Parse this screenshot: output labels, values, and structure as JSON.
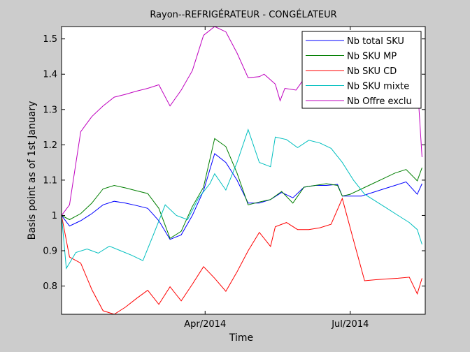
{
  "chart_data": {
    "type": "line",
    "title": "Rayon--REFRIGÉRATEUR - CONGÉLATEUR",
    "xlabel": "Time",
    "ylabel": "Basis point as of 1st January",
    "xlim": [
      "2014-01-01",
      "2014-08-17"
    ],
    "ylim": [
      0.72,
      1.535
    ],
    "xticks": [
      {
        "date": "2014-04-01",
        "label": "Apr/2014"
      },
      {
        "date": "2014-07-01",
        "label": "Jul/2014"
      }
    ],
    "yticks": [
      0.8,
      0.9,
      1.0,
      1.1,
      1.2,
      1.3,
      1.4,
      1.5
    ],
    "ytick_labels": [
      "0.8",
      "0.9",
      "1",
      "1.1",
      "1.2",
      "1.3",
      "1.4",
      "1.5"
    ],
    "grid": false,
    "legend_position": "top-right",
    "series": [
      {
        "name": "Nb total SKU",
        "color": "#0000ff",
        "points": [
          [
            "2014-01-01",
            1.0
          ],
          [
            "2014-01-06",
            0.97
          ],
          [
            "2014-01-13",
            0.985
          ],
          [
            "2014-01-20",
            1.005
          ],
          [
            "2014-01-27",
            1.03
          ],
          [
            "2014-02-03",
            1.04
          ],
          [
            "2014-02-10",
            1.035
          ],
          [
            "2014-02-17",
            1.028
          ],
          [
            "2014-02-24",
            1.02
          ],
          [
            "2014-03-03",
            0.985
          ],
          [
            "2014-03-10",
            0.932
          ],
          [
            "2014-03-17",
            0.945
          ],
          [
            "2014-03-24",
            1.0
          ],
          [
            "2014-03-31",
            1.07
          ],
          [
            "2014-04-07",
            1.175
          ],
          [
            "2014-04-14",
            1.15
          ],
          [
            "2014-04-21",
            1.1
          ],
          [
            "2014-04-28",
            1.035
          ],
          [
            "2014-05-05",
            1.035
          ],
          [
            "2014-05-12",
            1.045
          ],
          [
            "2014-05-19",
            1.065
          ],
          [
            "2014-05-26",
            1.05
          ],
          [
            "2014-06-02",
            1.08
          ],
          [
            "2014-06-09",
            1.085
          ],
          [
            "2014-06-16",
            1.085
          ],
          [
            "2014-06-23",
            1.088
          ],
          [
            "2014-06-26",
            1.055
          ],
          [
            "2014-07-01",
            1.055
          ],
          [
            "2014-07-08",
            1.055
          ],
          [
            "2014-07-15",
            1.065
          ],
          [
            "2014-07-22",
            1.075
          ],
          [
            "2014-07-29",
            1.085
          ],
          [
            "2014-08-05",
            1.095
          ],
          [
            "2014-08-12",
            1.06
          ],
          [
            "2014-08-15",
            1.09
          ]
        ]
      },
      {
        "name": "Nb SKU MP",
        "color": "#007f00",
        "points": [
          [
            "2014-01-01",
            1.0
          ],
          [
            "2014-01-06",
            0.988
          ],
          [
            "2014-01-13",
            1.005
          ],
          [
            "2014-01-20",
            1.035
          ],
          [
            "2014-01-27",
            1.075
          ],
          [
            "2014-02-03",
            1.085
          ],
          [
            "2014-02-10",
            1.078
          ],
          [
            "2014-02-17",
            1.07
          ],
          [
            "2014-02-24",
            1.062
          ],
          [
            "2014-03-03",
            1.02
          ],
          [
            "2014-03-10",
            0.935
          ],
          [
            "2014-03-17",
            0.955
          ],
          [
            "2014-03-24",
            1.025
          ],
          [
            "2014-03-31",
            1.08
          ],
          [
            "2014-04-07",
            1.218
          ],
          [
            "2014-04-14",
            1.195
          ],
          [
            "2014-04-21",
            1.12
          ],
          [
            "2014-04-28",
            1.03
          ],
          [
            "2014-05-05",
            1.038
          ],
          [
            "2014-05-12",
            1.045
          ],
          [
            "2014-05-19",
            1.068
          ],
          [
            "2014-05-26",
            1.035
          ],
          [
            "2014-06-02",
            1.08
          ],
          [
            "2014-06-09",
            1.085
          ],
          [
            "2014-06-16",
            1.09
          ],
          [
            "2014-06-23",
            1.085
          ],
          [
            "2014-06-26",
            1.055
          ],
          [
            "2014-07-01",
            1.06
          ],
          [
            "2014-07-08",
            1.075
          ],
          [
            "2014-07-15",
            1.09
          ],
          [
            "2014-07-22",
            1.105
          ],
          [
            "2014-07-29",
            1.12
          ],
          [
            "2014-08-05",
            1.13
          ],
          [
            "2014-08-12",
            1.098
          ],
          [
            "2014-08-15",
            1.135
          ]
        ]
      },
      {
        "name": "Nb SKU CD",
        "color": "#ff0000",
        "points": [
          [
            "2014-01-01",
            1.0
          ],
          [
            "2014-01-06",
            0.882
          ],
          [
            "2014-01-13",
            0.865
          ],
          [
            "2014-01-20",
            0.79
          ],
          [
            "2014-01-27",
            0.73
          ],
          [
            "2014-02-03",
            0.72
          ],
          [
            "2014-02-10",
            0.74
          ],
          [
            "2014-02-17",
            0.765
          ],
          [
            "2014-02-24",
            0.788
          ],
          [
            "2014-03-03",
            0.748
          ],
          [
            "2014-03-10",
            0.798
          ],
          [
            "2014-03-17",
            0.758
          ],
          [
            "2014-03-24",
            0.805
          ],
          [
            "2014-03-31",
            0.855
          ],
          [
            "2014-04-07",
            0.822
          ],
          [
            "2014-04-14",
            0.785
          ],
          [
            "2014-04-21",
            0.84
          ],
          [
            "2014-04-28",
            0.9
          ],
          [
            "2014-05-05",
            0.952
          ],
          [
            "2014-05-12",
            0.912
          ],
          [
            "2014-05-15",
            0.968
          ],
          [
            "2014-05-22",
            0.98
          ],
          [
            "2014-05-29",
            0.96
          ],
          [
            "2014-06-05",
            0.96
          ],
          [
            "2014-06-12",
            0.965
          ],
          [
            "2014-06-19",
            0.975
          ],
          [
            "2014-06-26",
            1.048
          ],
          [
            "2014-07-03",
            0.93
          ],
          [
            "2014-07-10",
            0.815
          ],
          [
            "2014-07-17",
            0.818
          ],
          [
            "2014-07-24",
            0.82
          ],
          [
            "2014-07-31",
            0.822
          ],
          [
            "2014-08-07",
            0.825
          ],
          [
            "2014-08-12",
            0.778
          ],
          [
            "2014-08-15",
            0.822
          ]
        ]
      },
      {
        "name": "Nb SKU mixte",
        "color": "#00bfbf",
        "points": [
          [
            "2014-01-01",
            1.0
          ],
          [
            "2014-01-04",
            0.85
          ],
          [
            "2014-01-10",
            0.895
          ],
          [
            "2014-01-17",
            0.905
          ],
          [
            "2014-01-24",
            0.893
          ],
          [
            "2014-01-31",
            0.913
          ],
          [
            "2014-02-07",
            0.9
          ],
          [
            "2014-02-14",
            0.887
          ],
          [
            "2014-02-21",
            0.872
          ],
          [
            "2014-02-28",
            0.95
          ],
          [
            "2014-03-07",
            1.03
          ],
          [
            "2014-03-14",
            1.0
          ],
          [
            "2014-03-21",
            0.988
          ],
          [
            "2014-03-28",
            1.05
          ],
          [
            "2014-04-04",
            1.09
          ],
          [
            "2014-04-07",
            1.118
          ],
          [
            "2014-04-14",
            1.072
          ],
          [
            "2014-04-21",
            1.15
          ],
          [
            "2014-04-28",
            1.243
          ],
          [
            "2014-05-05",
            1.15
          ],
          [
            "2014-05-12",
            1.138
          ],
          [
            "2014-05-15",
            1.222
          ],
          [
            "2014-05-22",
            1.215
          ],
          [
            "2014-05-29",
            1.192
          ],
          [
            "2014-06-05",
            1.213
          ],
          [
            "2014-06-12",
            1.205
          ],
          [
            "2014-06-19",
            1.19
          ],
          [
            "2014-06-26",
            1.15
          ],
          [
            "2014-07-03",
            1.1
          ],
          [
            "2014-07-10",
            1.06
          ],
          [
            "2014-07-17",
            1.04
          ],
          [
            "2014-07-24",
            1.02
          ],
          [
            "2014-07-31",
            1.0
          ],
          [
            "2014-08-07",
            0.98
          ],
          [
            "2014-08-12",
            0.96
          ],
          [
            "2014-08-15",
            0.918
          ]
        ]
      },
      {
        "name": "Nb Offre exclu",
        "color": "#bf00bf",
        "points": [
          [
            "2014-01-01",
            1.0
          ],
          [
            "2014-01-06",
            1.03
          ],
          [
            "2014-01-13",
            1.237
          ],
          [
            "2014-01-20",
            1.28
          ],
          [
            "2014-01-27",
            1.31
          ],
          [
            "2014-02-03",
            1.335
          ],
          [
            "2014-02-10",
            1.343
          ],
          [
            "2014-02-17",
            1.352
          ],
          [
            "2014-02-24",
            1.36
          ],
          [
            "2014-03-03",
            1.37
          ],
          [
            "2014-03-10",
            1.31
          ],
          [
            "2014-03-17",
            1.355
          ],
          [
            "2014-03-24",
            1.41
          ],
          [
            "2014-03-31",
            1.51
          ],
          [
            "2014-04-07",
            1.535
          ],
          [
            "2014-04-14",
            1.52
          ],
          [
            "2014-04-21",
            1.46
          ],
          [
            "2014-04-28",
            1.39
          ],
          [
            "2014-05-05",
            1.393
          ],
          [
            "2014-05-08",
            1.4
          ],
          [
            "2014-05-15",
            1.372
          ],
          [
            "2014-05-18",
            1.325
          ],
          [
            "2014-05-21",
            1.36
          ],
          [
            "2014-05-28",
            1.355
          ],
          [
            "2014-06-04",
            1.4
          ],
          [
            "2014-08-12",
            1.38
          ],
          [
            "2014-08-15",
            1.165
          ]
        ]
      }
    ]
  }
}
